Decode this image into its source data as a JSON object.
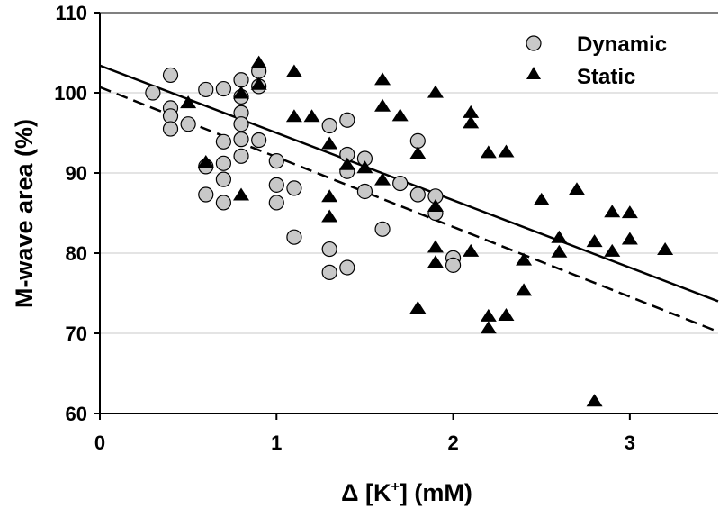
{
  "chart_data": {
    "type": "scatter",
    "title": "",
    "xlabel": {
      "prefix": "Δ [K",
      "sup": "+",
      "suffix": "] (mM)"
    },
    "ylabel": "M-wave area (%)",
    "xlim": [
      0,
      3.5
    ],
    "ylim": [
      60,
      110
    ],
    "xticks": [
      0,
      1,
      2,
      3
    ],
    "yticks": [
      60,
      70,
      80,
      90,
      100,
      110
    ],
    "grid": "horizontal",
    "legend_position": "top-right",
    "series": [
      {
        "name": "Dynamic",
        "marker": "circle",
        "color": "#c8c8c8",
        "points": [
          [
            0.3,
            100
          ],
          [
            0.4,
            102.2
          ],
          [
            0.4,
            98.1
          ],
          [
            0.4,
            97.1
          ],
          [
            0.4,
            95.5
          ],
          [
            0.5,
            96.1
          ],
          [
            0.6,
            100.4
          ],
          [
            0.6,
            90.8
          ],
          [
            0.6,
            87.3
          ],
          [
            0.7,
            100.5
          ],
          [
            0.7,
            93.9
          ],
          [
            0.7,
            91.2
          ],
          [
            0.7,
            89.2
          ],
          [
            0.7,
            86.3
          ],
          [
            0.8,
            101.6
          ],
          [
            0.8,
            99.5
          ],
          [
            0.8,
            97.5
          ],
          [
            0.8,
            96.1
          ],
          [
            0.8,
            94.2
          ],
          [
            0.8,
            92.1
          ],
          [
            0.9,
            102.7
          ],
          [
            0.9,
            100.8
          ],
          [
            0.9,
            94.1
          ],
          [
            1.0,
            91.5
          ],
          [
            1.0,
            88.5
          ],
          [
            1.0,
            86.3
          ],
          [
            1.1,
            88.1
          ],
          [
            1.1,
            82
          ],
          [
            1.3,
            95.9
          ],
          [
            1.3,
            80.5
          ],
          [
            1.3,
            77.6
          ],
          [
            1.4,
            96.6
          ],
          [
            1.4,
            92.3
          ],
          [
            1.4,
            90.2
          ],
          [
            1.4,
            78.2
          ],
          [
            1.5,
            91.8
          ],
          [
            1.5,
            87.7
          ],
          [
            1.6,
            83
          ],
          [
            1.7,
            88.7
          ],
          [
            1.8,
            94
          ],
          [
            1.8,
            87.3
          ],
          [
            1.9,
            87.1
          ],
          [
            1.9,
            85
          ],
          [
            2.0,
            79.4
          ],
          [
            2.0,
            78.5
          ]
        ]
      },
      {
        "name": "Static",
        "marker": "triangle",
        "color": "#000000",
        "points": [
          [
            0.5,
            98.7
          ],
          [
            0.6,
            91.3
          ],
          [
            0.8,
            99.9
          ],
          [
            0.8,
            87.2
          ],
          [
            0.9,
            103.7
          ],
          [
            0.9,
            101
          ],
          [
            1.1,
            102.6
          ],
          [
            1.1,
            97
          ],
          [
            1.2,
            97
          ],
          [
            1.3,
            93.6
          ],
          [
            1.3,
            87
          ],
          [
            1.3,
            84.5
          ],
          [
            1.4,
            91
          ],
          [
            1.5,
            90.6
          ],
          [
            1.6,
            101.6
          ],
          [
            1.6,
            98.3
          ],
          [
            1.6,
            89.1
          ],
          [
            1.7,
            97.1
          ],
          [
            1.8,
            92.4
          ],
          [
            1.8,
            73.1
          ],
          [
            1.9,
            100
          ],
          [
            1.9,
            85.8
          ],
          [
            1.9,
            80.7
          ],
          [
            1.9,
            78.8
          ],
          [
            2.1,
            97.5
          ],
          [
            2.1,
            96.2
          ],
          [
            2.1,
            80.2
          ],
          [
            2.2,
            92.5
          ],
          [
            2.2,
            72.1
          ],
          [
            2.2,
            70.6
          ],
          [
            2.3,
            92.6
          ],
          [
            2.3,
            72.2
          ],
          [
            2.4,
            79.1
          ],
          [
            2.4,
            75.3
          ],
          [
            2.5,
            86.6
          ],
          [
            2.6,
            81.9
          ],
          [
            2.6,
            80.1
          ],
          [
            2.7,
            87.9
          ],
          [
            2.8,
            81.4
          ],
          [
            2.8,
            61.5
          ],
          [
            2.9,
            85.1
          ],
          [
            2.9,
            80.2
          ],
          [
            3.0,
            85
          ],
          [
            3.0,
            81.7
          ],
          [
            3.2,
            80.4
          ]
        ]
      }
    ],
    "fit_lines": [
      {
        "name": "solid-fit-line",
        "style": "solid",
        "x": [
          0,
          3.5
        ],
        "y": [
          103.4,
          74.0
        ]
      },
      {
        "name": "dashed-fit-line",
        "style": "dashed",
        "x": [
          0,
          3.5
        ],
        "y": [
          100.7,
          70.2
        ]
      }
    ]
  }
}
